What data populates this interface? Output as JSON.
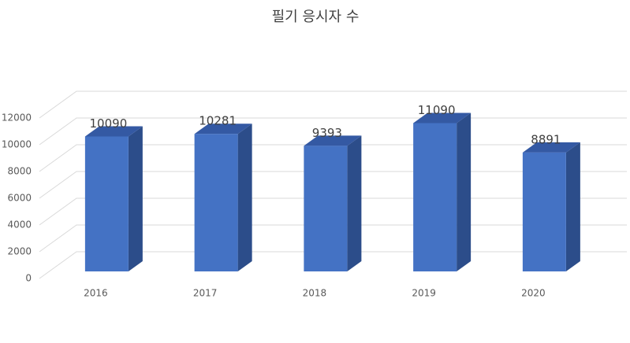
{
  "chart_data": {
    "type": "bar3d",
    "title": "필기 응시자 수",
    "categories": [
      "2016",
      "2017",
      "2018",
      "2019",
      "2020"
    ],
    "values": [
      10090,
      10281,
      9393,
      11090,
      8891
    ],
    "color": "#4472c4",
    "ylim": [
      0,
      12000
    ],
    "yticks": [
      0,
      2000,
      4000,
      6000,
      8000,
      10000,
      12000
    ],
    "grid": true
  }
}
